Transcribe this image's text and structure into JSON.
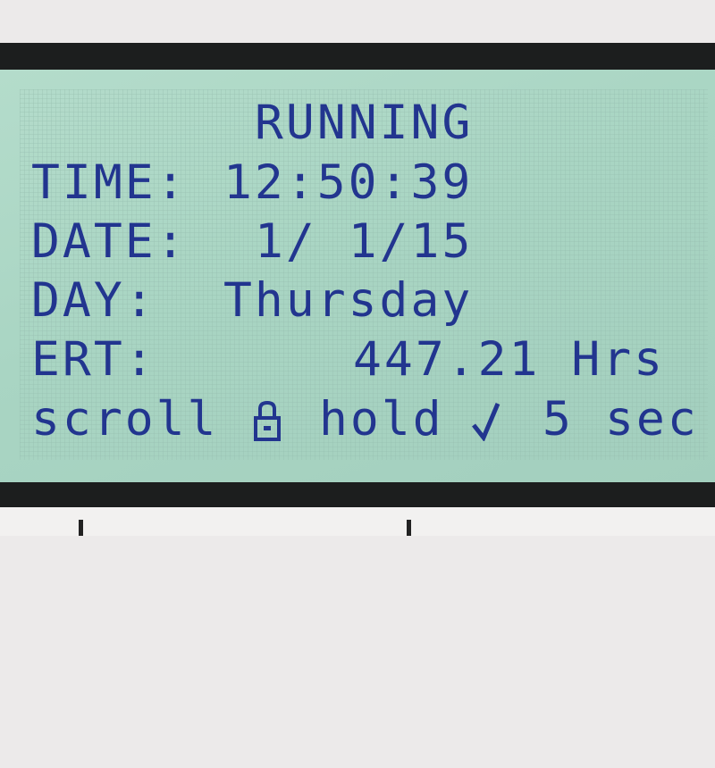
{
  "display": {
    "status": "RUNNING",
    "time_label": "TIME:",
    "time_value": "12:50:39",
    "date_label": "DATE:",
    "date_value": "1/ 1/15",
    "day_label": "DAY:",
    "day_value": "Thursday",
    "ert_label": "ERT:",
    "ert_value": "447.21 Hrs",
    "footer": {
      "scroll": "scroll",
      "lock_icon": "lock-icon",
      "hold": "hold",
      "check_icon": "check-icon",
      "seconds": "5",
      "unit": "sec"
    }
  },
  "colors": {
    "text": "#22358f",
    "background": "#a9d5c3",
    "bezel": "#1c1e1e"
  }
}
